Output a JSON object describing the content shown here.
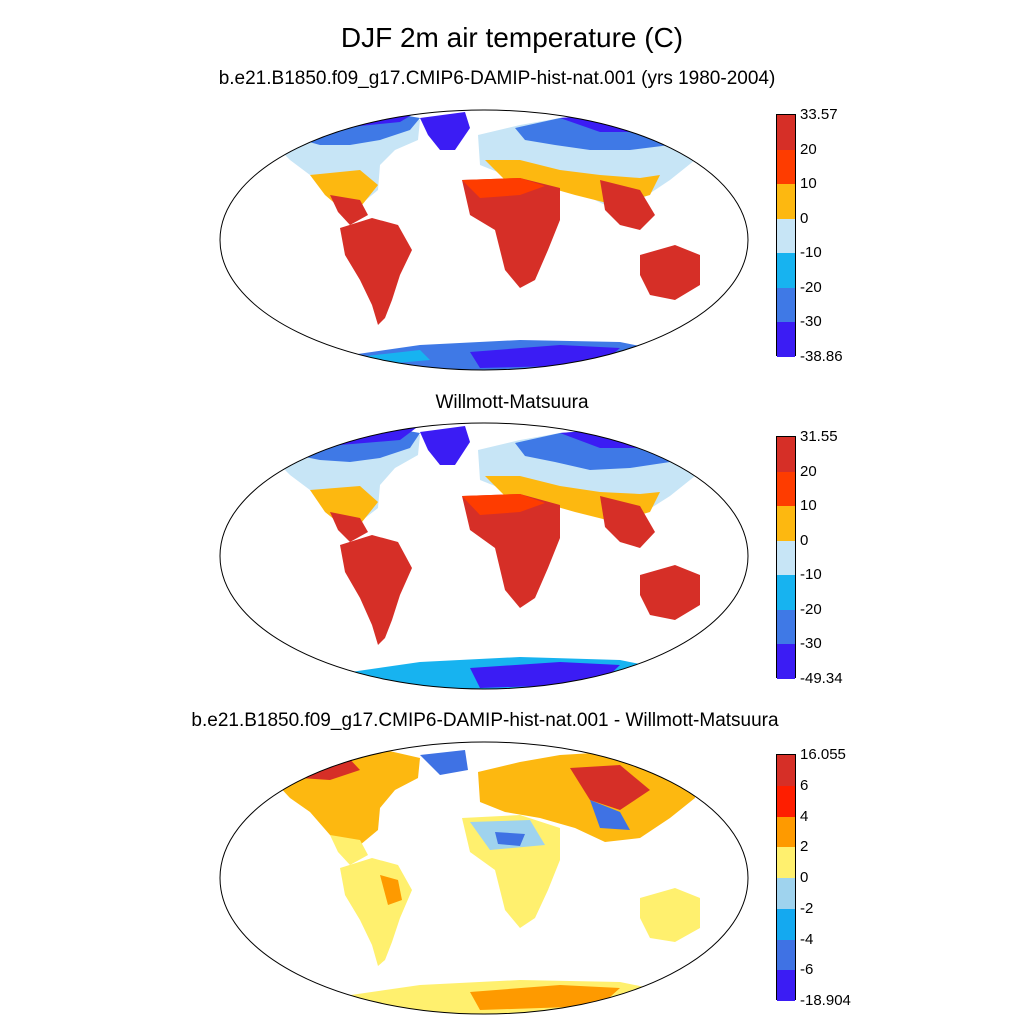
{
  "title": "DJF 2m air temperature (C)",
  "panels": [
    {
      "id": "model",
      "title": "b.e21.B1850.f09_g17.CMIP6-DAMIP-hist-nat.001 (yrs 1980-2004)",
      "colorbar": {
        "labels": [
          "33.57",
          "20",
          "10",
          "0",
          "-10",
          "-20",
          "-30",
          "-38.86"
        ],
        "colors": [
          "#d62f27",
          "#fe3c00",
          "#fdb810",
          "#c7e5f6",
          "#17b3f0",
          "#3f79e6",
          "#3b1cf4"
        ]
      }
    },
    {
      "id": "obs",
      "title": "Willmott-Matsuura",
      "colorbar": {
        "labels": [
          "31.55",
          "20",
          "10",
          "0",
          "-10",
          "-20",
          "-30",
          "-49.34"
        ],
        "colors": [
          "#d62f27",
          "#fe3c00",
          "#fdb810",
          "#c7e5f6",
          "#17b3f0",
          "#3f79e6",
          "#3b1cf4"
        ]
      }
    },
    {
      "id": "diff",
      "title": "b.e21.B1850.f09_g17.CMIP6-DAMIP-hist-nat.001 - Willmott-Matsuura",
      "colorbar": {
        "labels": [
          "16.055",
          "6",
          "4",
          "2",
          "0",
          "-2",
          "-4",
          "-6",
          "-18.904"
        ],
        "colors": [
          "#d62f27",
          "#fe1e00",
          "#fe9a00",
          "#fff06e",
          "#9fd3ee",
          "#14a9f0",
          "#3f72e4",
          "#3b1cf4"
        ]
      }
    }
  ]
}
